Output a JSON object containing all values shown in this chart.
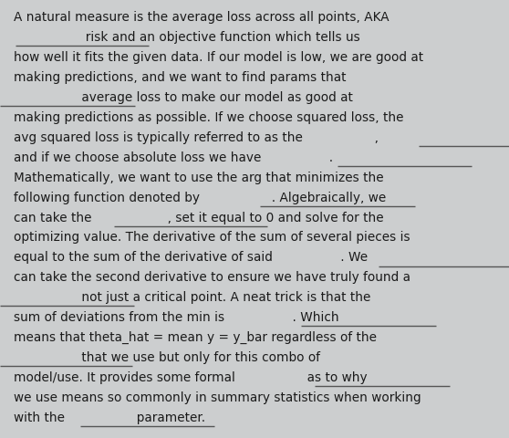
{
  "background_color": "#cccecf",
  "text_color": "#1a1a1a",
  "font_size": 9.8,
  "font_family": "DejaVu Sans",
  "lines": [
    "A natural measure is the average loss across all points, AKA",
    "                  risk and an objective function which tells us",
    "how well it fits the given data. If our model is low, we are good at",
    "making predictions, and we want to find params that",
    "                 average loss to make our model as good at",
    "making predictions as possible. If we choose squared loss, the",
    "avg squared loss is typically referred to as the                  ,",
    "and if we choose absolute loss we have                 .",
    "Mathematically, we want to use the arg that minimizes the",
    "following function denoted by                  . Algebraically, we",
    "can take the                   , set it equal to 0 and solve for the",
    "optimizing value. The derivative of the sum of several pieces is",
    "equal to the sum of the derivative of said                 . We",
    "can take the second derivative to ensure we have truly found a",
    "                 not just a critical point. A neat trick is that the",
    "sum of deviations from the min is                 . Which",
    "means that theta_hat = mean y = y_bar regardless of the",
    "                 that we use but only for this combo of",
    "model/use. It provides some formal                  as to why",
    "we use means so commonly in summary statistics when working",
    "with the                  parameter."
  ],
  "underline_segments": [
    [
      1,
      17,
      163
    ],
    [
      4,
      0,
      148
    ],
    [
      6,
      459,
      617
    ],
    [
      7,
      370,
      517
    ],
    [
      9,
      285,
      455
    ],
    [
      10,
      125,
      293
    ],
    [
      12,
      415,
      583
    ],
    [
      14,
      0,
      147
    ],
    [
      15,
      330,
      478
    ],
    [
      17,
      0,
      145
    ],
    [
      18,
      345,
      493
    ],
    [
      20,
      88,
      235
    ]
  ],
  "figsize": [
    5.58,
    4.81
  ],
  "dpi": 100
}
